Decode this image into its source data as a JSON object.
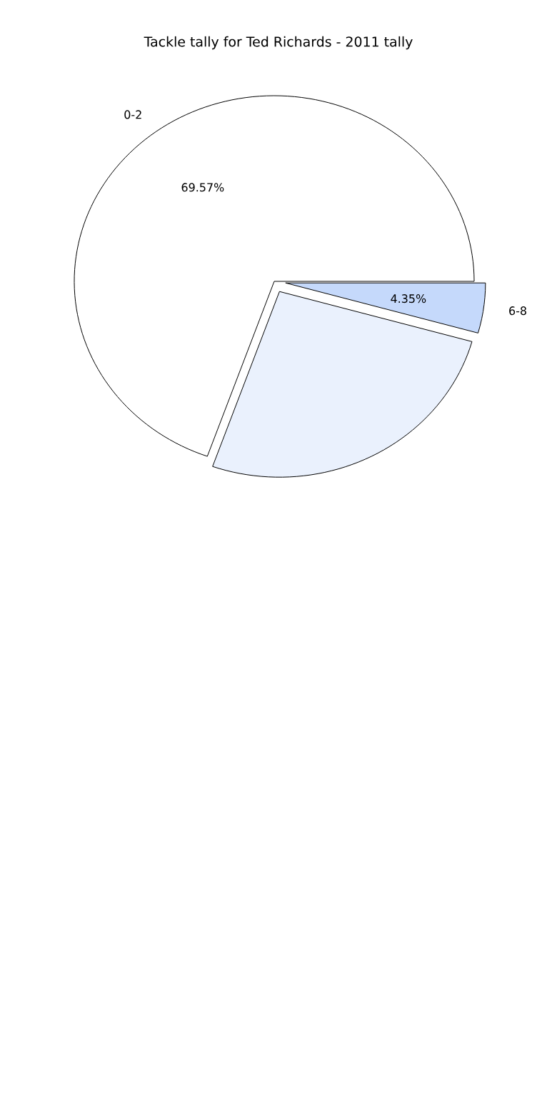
{
  "chart_data": {
    "type": "pie",
    "title": "Tackle tally for Ted Richards - 2011 tally",
    "categories": [
      "0-2",
      null,
      "6-8"
    ],
    "values": [
      69.57,
      26.08,
      4.35
    ],
    "value_labels": [
      "69.57%",
      null,
      "4.35%"
    ],
    "colors": [
      "#ffffff",
      "#eaf1fd",
      "#c5d9fb"
    ]
  }
}
